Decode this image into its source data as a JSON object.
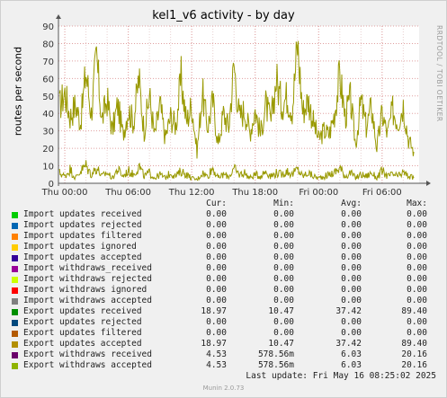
{
  "chart_data": {
    "type": "line",
    "title": "kel1_v6 activity - by day",
    "ylabel": "routes per second",
    "xlabel": "",
    "ylim": [
      0,
      90
    ],
    "yticks": [
      0,
      10,
      20,
      30,
      40,
      50,
      60,
      70,
      80,
      90
    ],
    "xticks": [
      "Thu 00:00",
      "Thu 06:00",
      "Thu 12:00",
      "Thu 18:00",
      "Fri 00:00",
      "Fri 06:00"
    ],
    "xtick_hours": [
      0,
      6,
      12,
      18,
      24,
      30
    ],
    "x_range_hours": [
      -0.6,
      33.5
    ],
    "grid": true,
    "series": [
      {
        "name": "Export updates accepted",
        "color": "#999900",
        "x_hours": [
          -0.5,
          0,
          0.5,
          1,
          1.5,
          2,
          2.5,
          3,
          3.5,
          4,
          4.5,
          5,
          5.5,
          6,
          6.5,
          7,
          7.5,
          8,
          8.5,
          9,
          9.5,
          10,
          10.5,
          11,
          11.5,
          12,
          12.5,
          13,
          13.5,
          14,
          14.5,
          15,
          15.5,
          16,
          16.5,
          17,
          17.5,
          18,
          18.5,
          19,
          19.5,
          20,
          20.5,
          21,
          21.5,
          22,
          22.5,
          23,
          23.5,
          24,
          24.5,
          25,
          25.5,
          26,
          26.5,
          27,
          27.5,
          28,
          28.5,
          29,
          29.5,
          30,
          30.5,
          31,
          31.5,
          32,
          32.5,
          33
        ],
        "values": [
          44,
          52,
          38,
          45,
          35,
          64,
          40,
          72,
          36,
          48,
          30,
          45,
          28,
          42,
          35,
          60,
          30,
          50,
          27,
          45,
          26,
          38,
          33,
          60,
          35,
          45,
          18,
          52,
          32,
          47,
          22,
          40,
          32,
          68,
          38,
          42,
          29,
          42,
          28,
          45,
          35,
          60,
          45,
          50,
          42,
          80,
          41,
          48,
          35,
          25,
          30,
          28,
          40,
          62,
          38,
          48,
          22,
          47,
          32,
          44,
          20,
          40,
          28,
          42,
          35,
          45,
          25,
          18
        ]
      },
      {
        "name": "Export withdraws accepted",
        "color": "#999900",
        "x_hours": [
          -0.5,
          0,
          0.5,
          1,
          1.5,
          2,
          2.5,
          3,
          3.5,
          4,
          4.5,
          5,
          5.5,
          6,
          6.5,
          7,
          7.5,
          8,
          8.5,
          9,
          9.5,
          10,
          10.5,
          11,
          11.5,
          12,
          12.5,
          13,
          13.5,
          14,
          14.5,
          15,
          15.5,
          16,
          16.5,
          17,
          17.5,
          18,
          18.5,
          19,
          19.5,
          20,
          20.5,
          21,
          21.5,
          22,
          22.5,
          23,
          23.5,
          24,
          24.5,
          25,
          25.5,
          26,
          26.5,
          27,
          27.5,
          28,
          28.5,
          29,
          29.5,
          30,
          30.5,
          31,
          31.5,
          32,
          32.5,
          33
        ],
        "values": [
          6,
          4,
          8,
          3,
          7,
          10,
          5,
          9,
          4,
          6,
          3,
          8,
          4,
          7,
          5,
          10,
          4,
          6,
          3,
          5,
          3,
          6,
          4,
          7,
          5,
          3,
          2,
          6,
          4,
          9,
          3,
          5,
          4,
          8,
          5,
          6,
          3,
          5,
          4,
          7,
          4,
          6,
          5,
          7,
          5,
          8,
          4,
          6,
          4,
          3,
          4,
          5,
          6,
          9,
          4,
          6,
          3,
          5,
          4,
          6,
          3,
          7,
          4,
          5,
          4,
          6,
          4,
          3
        ]
      }
    ]
  },
  "legend": {
    "headers": {
      "cur": "Cur:",
      "min": "Min:",
      "avg": "Avg:",
      "max": "Max:"
    },
    "rows": [
      {
        "name": "Import updates received",
        "color": "#00cc00",
        "cur": "0.00",
        "min": "0.00",
        "avg": "0.00",
        "max": "0.00"
      },
      {
        "name": "Import updates rejected",
        "color": "#0066b3",
        "cur": "0.00",
        "min": "0.00",
        "avg": "0.00",
        "max": "0.00"
      },
      {
        "name": "Import updates filtered",
        "color": "#ff8000",
        "cur": "0.00",
        "min": "0.00",
        "avg": "0.00",
        "max": "0.00"
      },
      {
        "name": "Import updates ignored",
        "color": "#ffcc00",
        "cur": "0.00",
        "min": "0.00",
        "avg": "0.00",
        "max": "0.00"
      },
      {
        "name": "Import updates accepted",
        "color": "#330099",
        "cur": "0.00",
        "min": "0.00",
        "avg": "0.00",
        "max": "0.00"
      },
      {
        "name": "Import withdraws_received",
        "color": "#990099",
        "cur": "0.00",
        "min": "0.00",
        "avg": "0.00",
        "max": "0.00"
      },
      {
        "name": "Import withdraws rejected",
        "color": "#ccff00",
        "cur": "0.00",
        "min": "0.00",
        "avg": "0.00",
        "max": "0.00"
      },
      {
        "name": "Import withdraws ignored",
        "color": "#ff0000",
        "cur": "0.00",
        "min": "0.00",
        "avg": "0.00",
        "max": "0.00"
      },
      {
        "name": "Import withdraws accepted",
        "color": "#808080",
        "cur": "0.00",
        "min": "0.00",
        "avg": "0.00",
        "max": "0.00"
      },
      {
        "name": "Export updates received",
        "color": "#008f00",
        "cur": "18.97",
        "min": "10.47",
        "avg": "37.42",
        "max": "89.40"
      },
      {
        "name": "Export updates rejected",
        "color": "#00487d",
        "cur": "0.00",
        "min": "0.00",
        "avg": "0.00",
        "max": "0.00"
      },
      {
        "name": "Export updates filtered",
        "color": "#b35a00",
        "cur": "0.00",
        "min": "0.00",
        "avg": "0.00",
        "max": "0.00"
      },
      {
        "name": "Export updates accepted",
        "color": "#b38f00",
        "cur": "18.97",
        "min": "10.47",
        "avg": "37.42",
        "max": "89.40"
      },
      {
        "name": "Export withdraws received",
        "color": "#6b006b",
        "cur": "4.53",
        "min": "578.56m",
        "avg": "6.03",
        "max": "20.16"
      },
      {
        "name": "Export withdraws accepted",
        "color": "#8fb300",
        "cur": "4.53",
        "min": "578.56m",
        "avg": "6.03",
        "max": "20.16"
      }
    ]
  },
  "last_update": "Last update: Fri May 16 08:25:02 2025",
  "watermark": "RRDTOOL / TOBI OETIKER",
  "footer": "Munin 2.0.73"
}
